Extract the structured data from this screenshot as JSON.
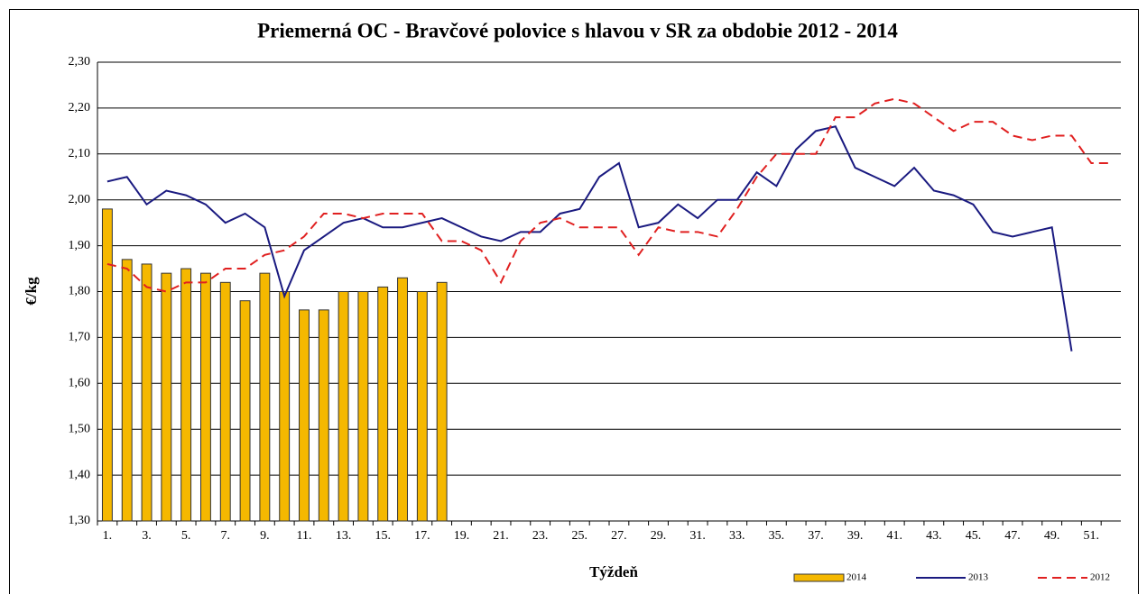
{
  "chart_data": {
    "type": "combo",
    "title": "Priemerná OC - Bravčové polovice s hlavou v SR za obdobie 2012 - 2014",
    "y_label": "€/kg",
    "x_label": "Týždeň",
    "categories": [
      "1.",
      null,
      "3.",
      null,
      "5.",
      null,
      "7.",
      null,
      "9.",
      null,
      "11.",
      null,
      "13.",
      null,
      "15.",
      null,
      "17.",
      null,
      "19.",
      null,
      "21.",
      null,
      "23.",
      null,
      "25.",
      null,
      "27.",
      null,
      "29.",
      null,
      "31.",
      null,
      "33.",
      null,
      "35.",
      null,
      "37.",
      null,
      "39.",
      null,
      "41.",
      null,
      "43.",
      null,
      "45.",
      null,
      "47.",
      null,
      "49.",
      null,
      "51.",
      null
    ],
    "series": [
      {
        "name": "2014",
        "type": "bar",
        "color": "#f5b800",
        "values": [
          1.98,
          1.87,
          1.86,
          1.84,
          1.85,
          1.84,
          1.82,
          1.78,
          1.84,
          1.8,
          1.76,
          1.76,
          1.8,
          1.8,
          1.81,
          1.83,
          1.8,
          1.82,
          null,
          null,
          null,
          null,
          null,
          null,
          null,
          null,
          null,
          null,
          null,
          null,
          null,
          null,
          null,
          null,
          null,
          null,
          null,
          null,
          null,
          null,
          null,
          null,
          null,
          null,
          null,
          null,
          null,
          null,
          null,
          null,
          null,
          null
        ]
      },
      {
        "name": "2013",
        "type": "line",
        "color": "#1a1a80",
        "line_style": "solid",
        "values": [
          2.04,
          2.05,
          1.99,
          2.02,
          2.01,
          1.99,
          1.95,
          1.97,
          1.94,
          1.79,
          1.89,
          1.92,
          1.95,
          1.96,
          1.94,
          1.94,
          1.95,
          1.96,
          1.94,
          1.92,
          1.91,
          1.93,
          1.93,
          1.97,
          1.98,
          2.05,
          2.08,
          1.94,
          1.95,
          1.99,
          1.96,
          2.0,
          2.0,
          2.06,
          2.03,
          2.11,
          2.15,
          2.16,
          2.07,
          2.05,
          2.03,
          2.07,
          2.02,
          2.01,
          1.99,
          1.93,
          1.92,
          1.93,
          1.94,
          1.67,
          null,
          null
        ]
      },
      {
        "name": "2012",
        "type": "line",
        "color": "#e02020",
        "line_style": "dashed",
        "values": [
          1.86,
          1.85,
          1.81,
          1.8,
          1.82,
          1.82,
          1.85,
          1.85,
          1.88,
          1.89,
          1.92,
          1.97,
          1.97,
          1.96,
          1.97,
          1.97,
          1.97,
          1.91,
          1.91,
          1.89,
          1.82,
          1.91,
          1.95,
          1.96,
          1.94,
          1.94,
          1.94,
          1.88,
          1.94,
          1.93,
          1.93,
          1.92,
          1.98,
          2.05,
          2.1,
          2.1,
          2.1,
          2.18,
          2.18,
          2.21,
          2.22,
          2.21,
          2.18,
          2.15,
          2.17,
          2.17,
          2.14,
          2.13,
          2.14,
          2.14,
          2.08,
          2.08
        ]
      }
    ],
    "ylim": [
      1.3,
      2.3
    ],
    "yticks": [
      {
        "value": 1.3,
        "label": "1,30"
      },
      {
        "value": 1.4,
        "label": "1,40"
      },
      {
        "value": 1.5,
        "label": "1,50"
      },
      {
        "value": 1.6,
        "label": "1,60"
      },
      {
        "value": 1.7,
        "label": "1,70"
      },
      {
        "value": 1.8,
        "label": "1,80"
      },
      {
        "value": 1.9,
        "label": "1,90"
      },
      {
        "value": 2.0,
        "label": "2,00"
      },
      {
        "value": 2.1,
        "label": "2,10"
      },
      {
        "value": 2.2,
        "label": "2,20"
      },
      {
        "value": 2.3,
        "label": "2,30"
      }
    ],
    "grid": true,
    "legend": "bottom-right"
  }
}
